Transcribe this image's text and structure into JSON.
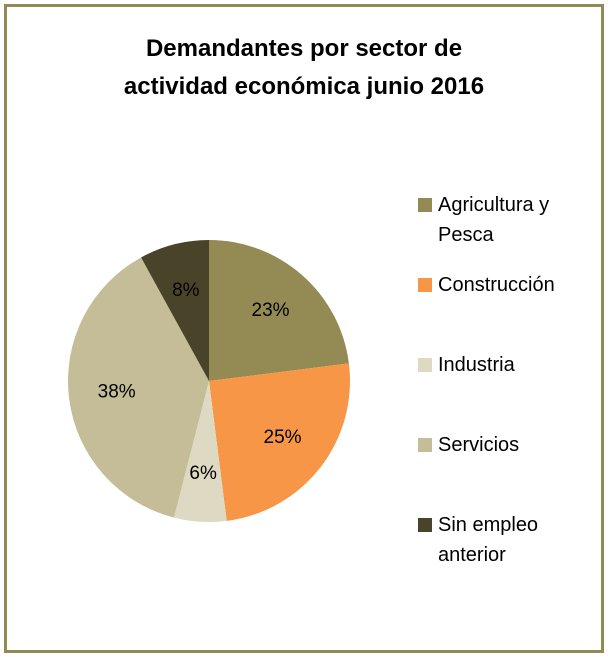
{
  "chart_data": {
    "type": "pie",
    "title": "Demandantes por sector de actividad económica junio 2016",
    "categories": [
      "Agricultura y Pesca",
      "Construcción",
      "Industria",
      "Servicios",
      "Sin empleo anterior"
    ],
    "values": [
      23,
      25,
      6,
      38,
      8
    ],
    "value_labels": [
      "23%",
      "25%",
      "6%",
      "38%",
      "8%"
    ],
    "colors": [
      "#948a54",
      "#f79646",
      "#ddd9c3",
      "#c4bd97",
      "#494429"
    ],
    "legend": "right"
  }
}
